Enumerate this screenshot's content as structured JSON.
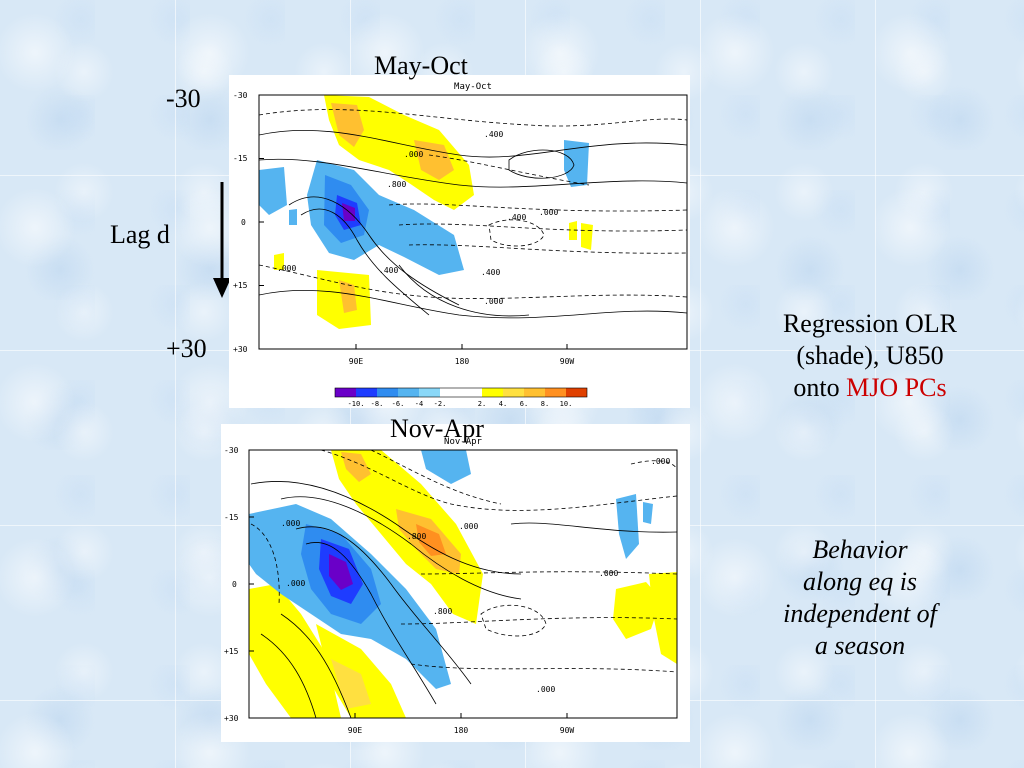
{
  "lag_labels": {
    "top": "-30",
    "middle": "Lag d",
    "bottom": "+30"
  },
  "description": {
    "line1": "Regression OLR",
    "line2": "(shade), U850",
    "line3_prefix": "onto ",
    "line3_highlight": "MJO PCs",
    "highlight_color": "#cc0000"
  },
  "note": {
    "line1": "Behavior",
    "line2": "along eq is",
    "line3": "independent of",
    "line4": "a season"
  },
  "chart_data": [
    {
      "type": "heatmap",
      "title": "May-Oct",
      "inner_title": "May-Oct",
      "x_ticks": [
        "90E",
        "180",
        "90W"
      ],
      "y_ticks": [
        "-30",
        "-15",
        "0",
        "+15",
        "+30"
      ],
      "ylim": [
        -30,
        30
      ],
      "shade_variable": "OLR regression",
      "contour_variable": "U850",
      "contour_labels": [
        ".400",
        ".000",
        ".800",
        ".000",
        ".400",
        ".400",
        ".000",
        ".400",
        ".000"
      ],
      "colorbar": {
        "labels": [
          "-10.",
          "-8.",
          "-6.",
          "-4",
          "-2.",
          "2.",
          "4.",
          "6.",
          "8.",
          "10."
        ],
        "colors": [
          "#6a00c8",
          "#1e3cff",
          "#2f8cf0",
          "#55b4f0",
          "#8ad8f8",
          "#ffffff",
          "#ffff00",
          "#ffe040",
          "#ffc030",
          "#ff9020",
          "#e04000"
        ]
      }
    },
    {
      "type": "heatmap",
      "title": "Nov-Apr",
      "inner_title": "Nov-Apr",
      "x_ticks": [
        "90E",
        "180",
        "90W"
      ],
      "y_ticks": [
        "-30",
        "-15",
        "0",
        "+15",
        "+30"
      ],
      "ylim": [
        -30,
        30
      ],
      "shade_variable": "OLR regression",
      "contour_variable": "U850",
      "contour_labels": [
        ".000",
        ".000",
        ".800",
        ".000",
        ".000",
        ".000",
        ".800",
        ".000"
      ]
    }
  ]
}
